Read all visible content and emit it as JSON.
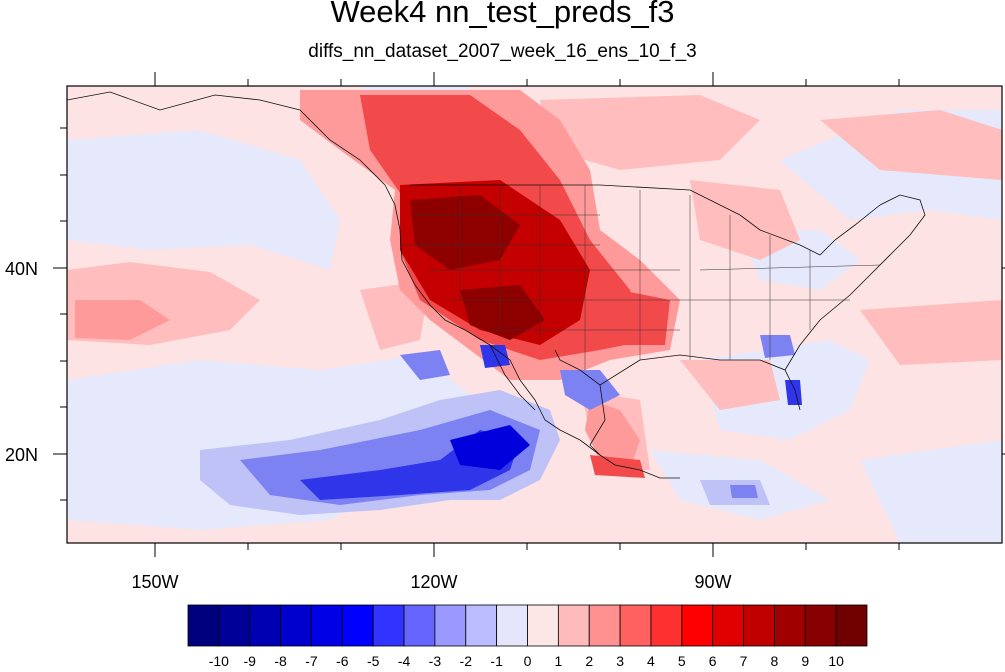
{
  "title": "Week4 nn_test_preds_f3",
  "subtitle": "diffs_nn_dataset_2007_week_16_ens_10_f_3",
  "axes": {
    "lon_labels": [
      "150W",
      "120W",
      "90W"
    ],
    "lat_labels": [
      "40N",
      "20N"
    ]
  },
  "colorbar": {
    "labels": [
      "-10",
      "-9",
      "-8",
      "-7",
      "-6",
      "-5",
      "-4",
      "-3",
      "-2",
      "-1",
      "0",
      "1",
      "2",
      "3",
      "4",
      "5",
      "6",
      "7",
      "8",
      "9",
      "10"
    ],
    "colors": [
      "#00007f",
      "#000099",
      "#0000b3",
      "#0000cc",
      "#0000e6",
      "#0000ff",
      "#3333ff",
      "#6666ff",
      "#9999ff",
      "#bbbbff",
      "#e5e5fb",
      "#fde6e6",
      "#ffbbbb",
      "#ff9090",
      "#ff6060",
      "#ff3030",
      "#ff0000",
      "#e00000",
      "#c00000",
      "#a00000",
      "#880000",
      "#700000"
    ]
  },
  "colors": {
    "light_red": "#fde1e1",
    "pink": "#ffbdbd",
    "salmon": "#ff9a9a",
    "red": "#f24a4a",
    "dark_red": "#c40000",
    "deep_red": "#8e0000",
    "light_blue": "#e6e8fb",
    "lav": "#bfc2f6",
    "blue": "#7c82f2",
    "deep_blue": "#2f35e8"
  }
}
